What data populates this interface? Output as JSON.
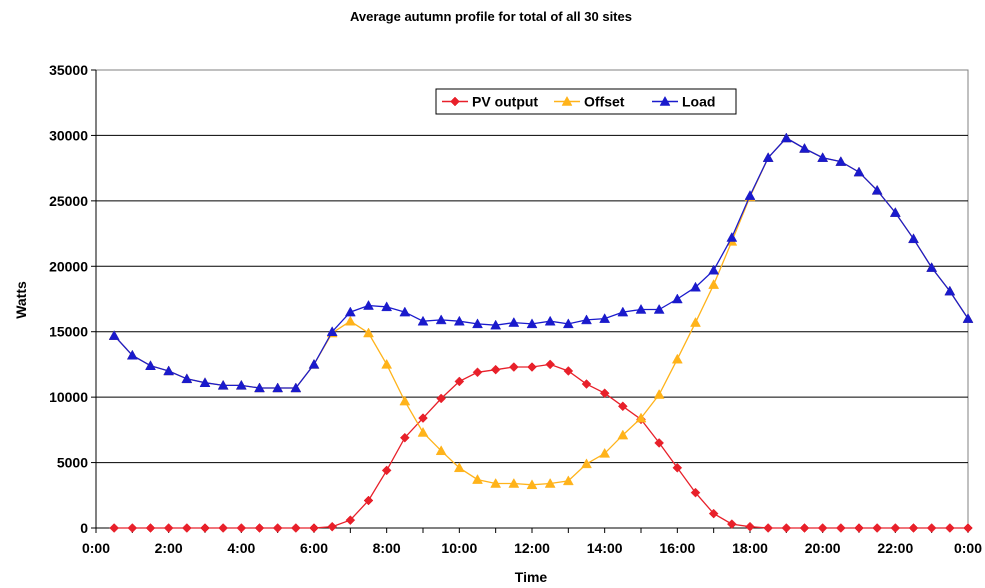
{
  "chart_data": {
    "type": "line",
    "title": "Average autumn profile for total of all 30 sites",
    "xlabel": "Time",
    "ylabel": "Watts",
    "ylim": [
      0,
      35000
    ],
    "yticks": [
      0,
      5000,
      10000,
      15000,
      20000,
      25000,
      30000,
      35000
    ],
    "ytick_labels": [
      "0",
      "5000",
      "10000",
      "15000",
      "20000",
      "25000",
      "30000",
      "35000"
    ],
    "xlim": [
      0,
      24
    ],
    "xticks": [
      0,
      2,
      4,
      6,
      8,
      10,
      12,
      14,
      16,
      18,
      20,
      22,
      24
    ],
    "xtick_labels": [
      "0:00",
      "2:00",
      "4:00",
      "6:00",
      "8:00",
      "10:00",
      "12:00",
      "14:00",
      "16:00",
      "18:00",
      "20:00",
      "22:00",
      "0:00"
    ],
    "grid": "horizontal",
    "legend": "top-center",
    "x": [
      0.5,
      1,
      1.5,
      2,
      2.5,
      3,
      3.5,
      4,
      4.5,
      5,
      5.5,
      6,
      6.5,
      7,
      7.5,
      8,
      8.5,
      9,
      9.5,
      10,
      10.5,
      11,
      11.5,
      12,
      12.5,
      13,
      13.5,
      14,
      14.5,
      15,
      15.5,
      16,
      16.5,
      17,
      17.5,
      18,
      18.5,
      19,
      19.5,
      20,
      20.5,
      21,
      21.5,
      22,
      22.5,
      23,
      23.5,
      24
    ],
    "series": [
      {
        "name": "PV output",
        "color": "#e8202a",
        "marker": "diamond",
        "values": [
          0,
          0,
          0,
          0,
          0,
          0,
          0,
          0,
          0,
          0,
          0,
          0,
          100,
          600,
          2100,
          4400,
          6900,
          8400,
          9900,
          11200,
          11900,
          12100,
          12300,
          12300,
          12500,
          12000,
          11000,
          10300,
          9300,
          8300,
          6500,
          4600,
          2700,
          1100,
          300,
          100,
          0,
          0,
          0,
          0,
          0,
          0,
          0,
          0,
          0,
          0,
          0,
          0
        ]
      },
      {
        "name": "Offset",
        "color": "#ffb31a",
        "marker": "triangle",
        "values": [
          14700,
          13200,
          12400,
          12000,
          11400,
          11100,
          10900,
          10900,
          10700,
          10700,
          10700,
          12500,
          14900,
          15800,
          14900,
          12500,
          9700,
          7300,
          5900,
          4600,
          3700,
          3400,
          3400,
          3300,
          3400,
          3600,
          4900,
          5700,
          7100,
          8400,
          10200,
          12900,
          15700,
          18600,
          21900,
          25300,
          28300,
          29800,
          29000,
          28300,
          28000,
          27200,
          25800,
          24100,
          22100,
          19900,
          18100,
          16000
        ]
      },
      {
        "name": "Load",
        "color": "#1a1acc",
        "marker": "triangle",
        "values": [
          14700,
          13200,
          12400,
          12000,
          11400,
          11100,
          10900,
          10900,
          10700,
          10700,
          10700,
          12500,
          15000,
          16500,
          17000,
          16900,
          16500,
          15800,
          15900,
          15800,
          15600,
          15500,
          15700,
          15600,
          15800,
          15600,
          15900,
          16000,
          16500,
          16700,
          16700,
          17500,
          18400,
          19700,
          22200,
          25400,
          28300,
          29800,
          29000,
          28300,
          28000,
          27200,
          25800,
          24100,
          22100,
          19900,
          18100,
          16000
        ]
      }
    ]
  }
}
